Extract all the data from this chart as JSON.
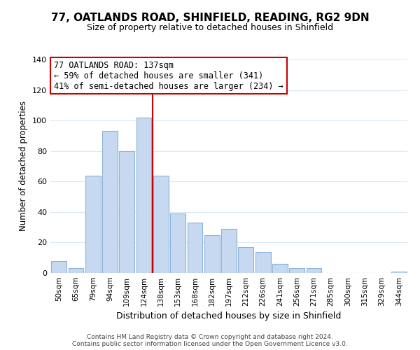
{
  "title": "77, OATLANDS ROAD, SHINFIELD, READING, RG2 9DN",
  "subtitle": "Size of property relative to detached houses in Shinfield",
  "xlabel": "Distribution of detached houses by size in Shinfield",
  "ylabel": "Number of detached properties",
  "bar_labels": [
    "50sqm",
    "65sqm",
    "79sqm",
    "94sqm",
    "109sqm",
    "124sqm",
    "138sqm",
    "153sqm",
    "168sqm",
    "182sqm",
    "197sqm",
    "212sqm",
    "226sqm",
    "241sqm",
    "256sqm",
    "271sqm",
    "285sqm",
    "300sqm",
    "315sqm",
    "329sqm",
    "344sqm"
  ],
  "bar_values": [
    8,
    3,
    64,
    93,
    80,
    102,
    64,
    39,
    33,
    25,
    29,
    17,
    14,
    6,
    3,
    3,
    0,
    0,
    0,
    0,
    1
  ],
  "bar_color": "#c6d9f0",
  "bar_edge_color": "#8ab4d8",
  "vline_x_index": 6,
  "vline_color": "#cc0000",
  "annotation_line1": "77 OATLANDS ROAD: 137sqm",
  "annotation_line2": "← 59% of detached houses are smaller (341)",
  "annotation_line3": "41% of semi-detached houses are larger (234) →",
  "annotation_box_color": "#ffffff",
  "annotation_box_edge": "#cc0000",
  "ylim": [
    0,
    140
  ],
  "yticks": [
    0,
    20,
    40,
    60,
    80,
    100,
    120,
    140
  ],
  "footer_line1": "Contains HM Land Registry data © Crown copyright and database right 2024.",
  "footer_line2": "Contains public sector information licensed under the Open Government Licence v3.0.",
  "bg_color": "#ffffff",
  "grid_color": "#dce8f5",
  "title_fontsize": 11,
  "subtitle_fontsize": 9
}
